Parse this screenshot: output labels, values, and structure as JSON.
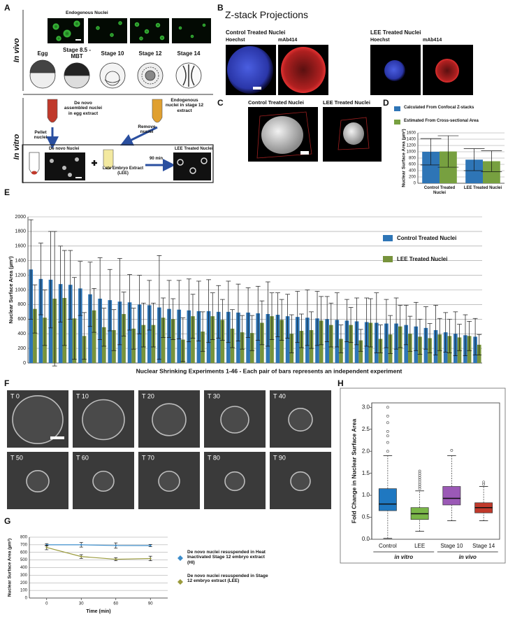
{
  "panel_labels": [
    "A",
    "B",
    "C",
    "D",
    "E",
    "F",
    "G",
    "H"
  ],
  "panel_a": {
    "in_vivo": "In vivo",
    "in_vitro": "In vitro",
    "endogenous_nuclei": "Endogenous Nuclei",
    "stages": [
      "Egg",
      "Stage 8.5 - MBT",
      "Stage 10",
      "Stage 12",
      "Stage 14"
    ],
    "de_novo_assembled": "De novo assembled nuclei in egg extract",
    "pellet": "Pellet nuclei",
    "endogenous_stage12": "Endogenous nuclei in stage 12 extract",
    "remove": "Remove nuclei",
    "de_novo_nuclei": "De novo Nuclei",
    "lee": "Late Embryo Extract (LEE)",
    "time": "90 min",
    "lee_treated": "LEE Treated Nuclei"
  },
  "panel_b": {
    "title": "Z-stack Projections",
    "groups": [
      "Control Treated Nuclei",
      "LEE Treated Nuclei"
    ],
    "stains": [
      "Hoechst",
      "mAb414"
    ]
  },
  "panel_c": {
    "groups": [
      "Control Treated Nuclei",
      "LEE Treated Nuclei"
    ]
  },
  "panel_f": {
    "timepoints": [
      "T 0",
      "T 10",
      "T 20",
      "T 30",
      "T 40",
      "T 50",
      "T 60",
      "T 70",
      "T 80",
      "T 90"
    ]
  },
  "chart_data": [
    {
      "type": "bar",
      "categories": [
        "Control Treated Nuclei",
        "LEE Treated Nuclei"
      ],
      "series": [
        {
          "name": "Calculated From Confocal Z-stacks",
          "color": "#2e75b6",
          "values": [
            1000,
            750
          ],
          "errors": [
            420,
            350
          ]
        },
        {
          "name": "Estimated From Cross-sectional Area",
          "color": "#77a040",
          "values": [
            1010,
            700
          ],
          "errors": [
            500,
            330
          ]
        }
      ],
      "ylabel": "Nuclear Surface Area (µm²)",
      "ylim": [
        0,
        1600
      ],
      "yticks": [
        0,
        200,
        400,
        600,
        800,
        1000,
        1200,
        1400,
        1600
      ],
      "grid": true,
      "legend": "top"
    },
    {
      "type": "bar",
      "series": [
        {
          "name": "Control Treated Nuclei",
          "color": "#2e75b6",
          "values": [
            1280,
            1150,
            1140,
            1080,
            1070,
            1020,
            940,
            880,
            860,
            840,
            830,
            800,
            790,
            760,
            740,
            730,
            720,
            710,
            710,
            700,
            700,
            690,
            690,
            680,
            670,
            660,
            640,
            630,
            620,
            610,
            600,
            590,
            580,
            570,
            560,
            550,
            540,
            540,
            520,
            500,
            480,
            450,
            420,
            400,
            380,
            360
          ],
          "errors": [
            680,
            490,
            660,
            520,
            470,
            370,
            440,
            560,
            420,
            590,
            380,
            400,
            340,
            710,
            390,
            400,
            430,
            410,
            430,
            360,
            420,
            390,
            340,
            370,
            440,
            300,
            300,
            350,
            380,
            370,
            310,
            370,
            290,
            320,
            330,
            410,
            330,
            350,
            270,
            330,
            290,
            340,
            270,
            300,
            280,
            250
          ]
        },
        {
          "name": "LEE Treated Nuclei",
          "color": "#77933c",
          "values": [
            740,
            620,
            880,
            890,
            610,
            370,
            720,
            490,
            450,
            670,
            470,
            520,
            520,
            620,
            600,
            320,
            640,
            430,
            640,
            590,
            470,
            420,
            410,
            550,
            640,
            590,
            400,
            440,
            450,
            580,
            520,
            330,
            520,
            310,
            550,
            330,
            390,
            500,
            400,
            360,
            340,
            390,
            370,
            350,
            370,
            250
          ],
          "errors": [
            330,
            380,
            920,
            650,
            560,
            320,
            300,
            260,
            280,
            300,
            280,
            300,
            300,
            270,
            280,
            300,
            300,
            270,
            320,
            280,
            260,
            230,
            240,
            300,
            320,
            280,
            260,
            230,
            250,
            330,
            300,
            190,
            240,
            150,
            330,
            190,
            260,
            290,
            240,
            240,
            200,
            220,
            230,
            180,
            200,
            140
          ]
        }
      ],
      "xlabel": "Nuclear Shrinking Experiments 1-46 - Each pair of bars represents an independent experiment",
      "ylabel": "Nuclear Surface Area (µm²)",
      "ylim": [
        0,
        2000
      ],
      "yticks": [
        0,
        200,
        400,
        600,
        800,
        1000,
        1200,
        1400,
        1600,
        1800,
        2000
      ],
      "grid": true,
      "legend": "upper right"
    },
    {
      "type": "line",
      "x": [
        0,
        30,
        60,
        90
      ],
      "series": [
        {
          "name": "De novo nuclei resuspended in Heat Inactivated Stage 12 embryo extract (HI)",
          "color": "#3c8dcb",
          "values": [
            700,
            700,
            690,
            690
          ],
          "errors": [
            15,
            30,
            35,
            15
          ]
        },
        {
          "name": "De novo nuclei resuspended in Stage 12 embryo extract (LEE)",
          "color": "#9a9a3c",
          "values": [
            665,
            545,
            510,
            520
          ],
          "errors": [
            30,
            25,
            20,
            30
          ]
        }
      ],
      "xlabel": "Time (min)",
      "ylabel": "Nuclear Surface Area (µm²)",
      "xlim": [
        -15,
        105
      ],
      "xticks": [
        0,
        30,
        60,
        90
      ],
      "ylim": [
        0,
        800
      ],
      "yticks": [
        0,
        100,
        200,
        300,
        400,
        500,
        600,
        700,
        800
      ],
      "grid": true,
      "legend": "right"
    },
    {
      "type": "box",
      "categories": [
        "Control",
        "LEE",
        "Stage 10",
        "Stage 14"
      ],
      "colors": [
        "#1f78c1",
        "#7ab648",
        "#9b59b6",
        "#c0392b"
      ],
      "stats": [
        {
          "low": 0.02,
          "q1": 0.65,
          "median": 0.8,
          "q3": 1.15,
          "high": 1.9,
          "outliers": [
            2.0,
            2.2,
            2.35,
            2.45,
            2.65,
            2.8,
            3.0
          ]
        },
        {
          "low": 0.18,
          "q1": 0.45,
          "median": 0.58,
          "q3": 0.72,
          "high": 1.1,
          "outliers": [
            1.15,
            1.2,
            1.25,
            1.3,
            1.35,
            1.4,
            1.45,
            1.5,
            1.55
          ]
        },
        {
          "low": 0.42,
          "q1": 0.78,
          "median": 0.93,
          "q3": 1.2,
          "high": 1.9,
          "outliers": [
            2.02
          ]
        },
        {
          "low": 0.42,
          "q1": 0.6,
          "median": 0.72,
          "q3": 0.83,
          "high": 1.2,
          "outliers": [
            1.25,
            1.3
          ]
        }
      ],
      "groups": [
        {
          "label": "in vitro",
          "categories": [
            "Control",
            "LEE"
          ]
        },
        {
          "label": "in vivo",
          "categories": [
            "Stage 10",
            "Stage 14"
          ]
        }
      ],
      "ylabel": "Fold Change in Nuclear Surface Area",
      "ylim": [
        0,
        3.1
      ],
      "yticks": [
        {
          "value": 0,
          "label": "0.0"
        },
        0.5,
        {
          "value": 1,
          "label": "1.0"
        },
        1.5,
        {
          "value": 2,
          "label": "2.0"
        },
        2.5,
        {
          "value": 3,
          "label": "3.0"
        }
      ]
    }
  ]
}
